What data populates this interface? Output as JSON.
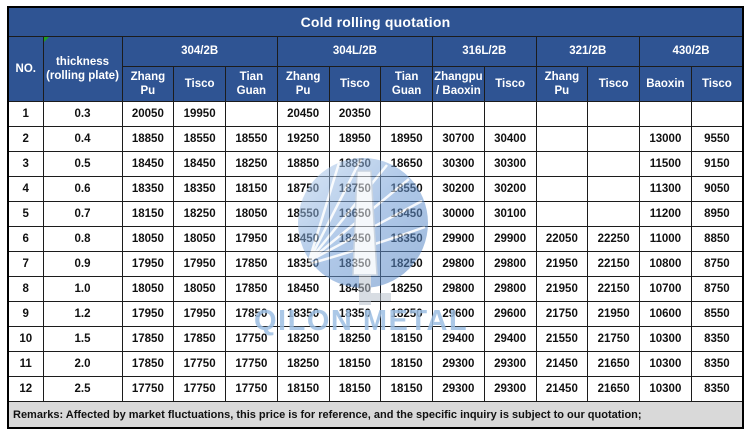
{
  "title": "Cold rolling quotation",
  "header": {
    "no_label": "NO.",
    "thickness_label": "thickness\n(rolling plate)",
    "groups": [
      {
        "label": "304/2B",
        "companies": [
          "Zhang Pu",
          "Tisco",
          "Tian Guan"
        ]
      },
      {
        "label": "304L/2B",
        "companies": [
          "Zhang Pu",
          "Tisco",
          "Tian Guan"
        ]
      },
      {
        "label": "316L/2B",
        "companies": [
          "Zhangpu\n/ Baoxin",
          "Tisco"
        ]
      },
      {
        "label": "321/2B",
        "companies": [
          "Zhang Pu",
          "Tisco"
        ]
      },
      {
        "label": "430/2B",
        "companies": [
          "Baoxin",
          "Tisco"
        ]
      }
    ]
  },
  "rows": [
    {
      "no": "1",
      "thickness": "0.3",
      "values": [
        "20050",
        "19950",
        "",
        "20450",
        "20350",
        "",
        "",
        "",
        "",
        "",
        "",
        ""
      ]
    },
    {
      "no": "2",
      "thickness": "0.4",
      "values": [
        "18850",
        "18550",
        "18550",
        "19250",
        "18950",
        "18950",
        "30700",
        "30400",
        "",
        "",
        "13000",
        "9550"
      ]
    },
    {
      "no": "3",
      "thickness": "0.5",
      "values": [
        "18450",
        "18450",
        "18250",
        "18850",
        "18850",
        "18650",
        "30300",
        "30300",
        "",
        "",
        "11500",
        "9150"
      ]
    },
    {
      "no": "4",
      "thickness": "0.6",
      "values": [
        "18350",
        "18350",
        "18150",
        "18750",
        "18750",
        "18550",
        "30200",
        "30200",
        "",
        "",
        "11300",
        "9050"
      ]
    },
    {
      "no": "5",
      "thickness": "0.7",
      "values": [
        "18150",
        "18250",
        "18050",
        "18550",
        "18650",
        "18450",
        "30000",
        "30100",
        "",
        "",
        "11200",
        "8950"
      ]
    },
    {
      "no": "6",
      "thickness": "0.8",
      "values": [
        "18050",
        "18050",
        "17950",
        "18450",
        "18450",
        "18350",
        "29900",
        "29900",
        "22050",
        "22250",
        "11000",
        "8850"
      ]
    },
    {
      "no": "7",
      "thickness": "0.9",
      "values": [
        "17950",
        "17950",
        "17850",
        "18350",
        "18350",
        "18250",
        "29800",
        "29800",
        "21950",
        "22150",
        "10800",
        "8750"
      ]
    },
    {
      "no": "8",
      "thickness": "1.0",
      "values": [
        "18050",
        "18050",
        "17850",
        "18450",
        "18450",
        "18250",
        "29800",
        "29800",
        "21950",
        "22150",
        "10700",
        "8750"
      ]
    },
    {
      "no": "9",
      "thickness": "1.2",
      "values": [
        "17950",
        "17950",
        "17850",
        "18350",
        "18350",
        "18250",
        "29600",
        "29600",
        "21750",
        "21950",
        "10600",
        "8550"
      ]
    },
    {
      "no": "10",
      "thickness": "1.5",
      "values": [
        "17850",
        "17850",
        "17750",
        "18250",
        "18250",
        "18150",
        "29400",
        "29400",
        "21550",
        "21750",
        "10300",
        "8350"
      ]
    },
    {
      "no": "11",
      "thickness": "2.0",
      "values": [
        "17850",
        "17750",
        "17750",
        "18250",
        "18150",
        "18150",
        "29300",
        "29300",
        "21450",
        "21650",
        "10300",
        "8350"
      ]
    },
    {
      "no": "12",
      "thickness": "2.5",
      "values": [
        "17750",
        "17750",
        "17750",
        "18150",
        "18150",
        "18150",
        "29300",
        "29300",
        "21450",
        "21650",
        "10300",
        "8350"
      ]
    }
  ],
  "remarks": "Remarks: Affected by market fluctuations, this price is for reference, and the specific inquiry is subject to our quotation;",
  "watermark": {
    "text": "QILON METAL",
    "logo": "bridge-sphere-logo"
  },
  "colors": {
    "header_blue": "#2F5493",
    "remarks_bg": "#D9D9D9",
    "watermark_blue": "#9DBFE3",
    "note_marker_green": "#1EA11E"
  }
}
